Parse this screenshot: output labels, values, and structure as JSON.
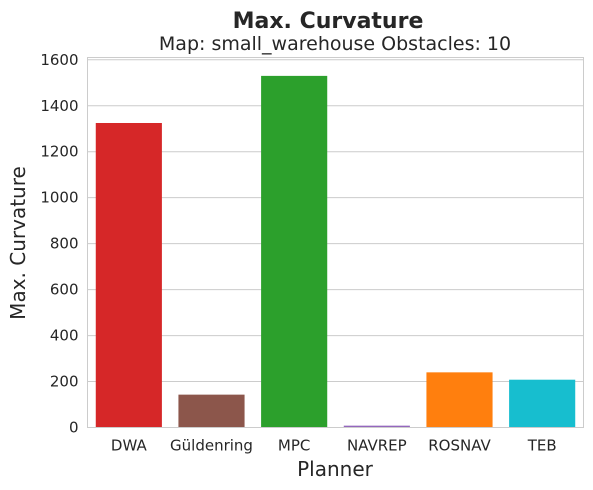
{
  "chart_data": {
    "type": "bar",
    "title": "Max. Curvature",
    "subtitle": "Map: small_warehouse Obstacles: 10",
    "xlabel": "Planner",
    "ylabel": "Max. Curvature",
    "categories": [
      "DWA",
      "Güldenring",
      "MPC",
      "NAVREP",
      "ROSNAV",
      "TEB"
    ],
    "values": [
      1325,
      143,
      1530,
      8,
      240,
      208
    ],
    "colors": [
      "#d62728",
      "#8c564b",
      "#2ca02c",
      "#9467bd",
      "#ff7f0e",
      "#17becf"
    ],
    "ylim": [
      0,
      1610
    ],
    "yticks": [
      0,
      200,
      400,
      600,
      800,
      1000,
      1200,
      1400,
      1600
    ],
    "grid": true,
    "legend": "none"
  }
}
